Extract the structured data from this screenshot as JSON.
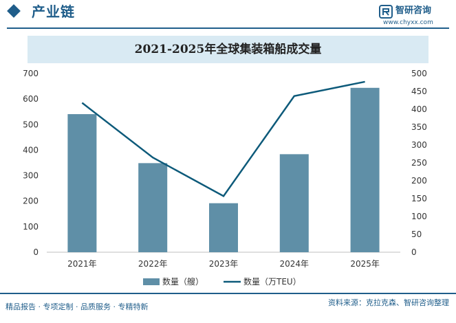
{
  "header": {
    "section_title": "产业链",
    "brand_name": "智研咨询",
    "brand_url": "www.chyxx.com"
  },
  "footer": {
    "left_text": "精品报告 · 专项定制 · 品质服务 · 专精特新",
    "right_text": "资料来源：克拉克森、智研咨询整理"
  },
  "colors": {
    "brand": "#1f5d8a",
    "bar": "#5f8fa7",
    "line": "#0d5a7a",
    "title_band": "#d9eaf3"
  },
  "chart_data": {
    "type": "bar+line",
    "title": "2021-2025年全球集装箱船成交量",
    "categories": [
      "2021年",
      "2022年",
      "2023年",
      "2024年",
      "2025年"
    ],
    "series": [
      {
        "name": "数量（艘）",
        "type": "bar",
        "axis": "left",
        "values": [
          541,
          349,
          192,
          384,
          644
        ]
      },
      {
        "name": "数量（万TEU）",
        "type": "line",
        "axis": "right",
        "values": [
          418,
          265,
          157,
          437,
          477
        ]
      }
    ],
    "left_axis": {
      "ylim": [
        0,
        700
      ],
      "ticks": [
        "0",
        "100",
        "200",
        "300",
        "400",
        "500",
        "600",
        "700"
      ]
    },
    "right_axis": {
      "ylim": [
        0,
        500
      ],
      "ticks": [
        "0",
        "50",
        "100",
        "150",
        "200",
        "250",
        "300",
        "350",
        "400",
        "450",
        "500"
      ]
    },
    "grid": false,
    "legend": "bottom-center"
  }
}
